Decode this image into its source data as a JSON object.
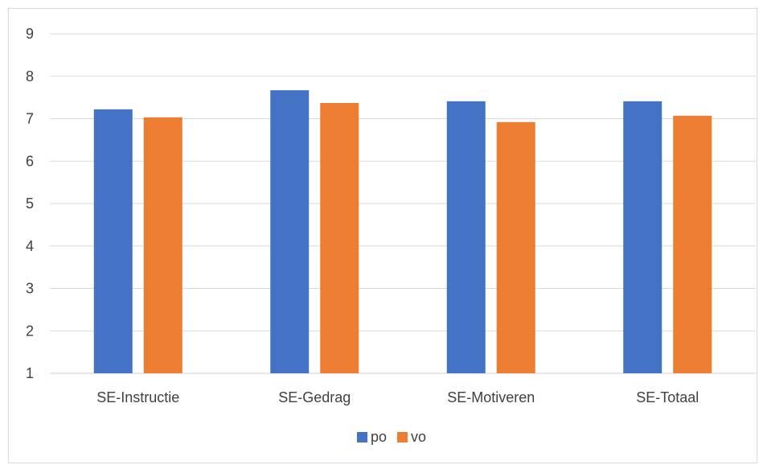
{
  "chart_data": {
    "type": "bar",
    "title": "",
    "xlabel": "",
    "ylabel": "",
    "categories": [
      "SE-Instructie",
      "SE-Gedrag",
      "SE-Motiveren",
      "SE-Totaal"
    ],
    "series": [
      {
        "name": "po",
        "color": "#4472C4",
        "values": [
          7.22,
          7.67,
          7.41,
          7.41
        ]
      },
      {
        "name": "vo",
        "color": "#ED7D31",
        "values": [
          7.03,
          7.37,
          6.92,
          7.07
        ]
      }
    ],
    "yticks": [
      "1",
      "2",
      "3",
      "4",
      "5",
      "6",
      "7",
      "8",
      "9"
    ],
    "ylim": [
      1,
      9
    ],
    "grid": true,
    "legend_position": "bottom"
  }
}
